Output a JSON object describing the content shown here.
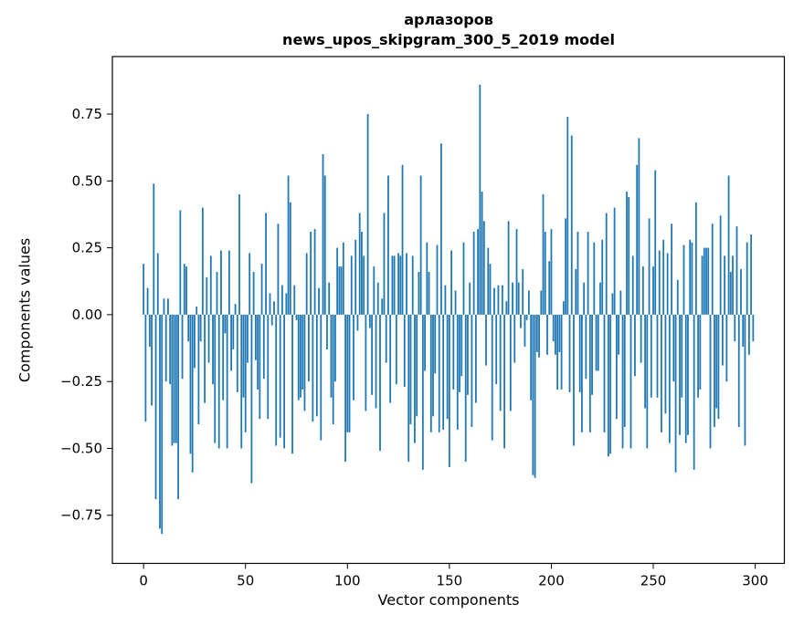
{
  "title": {
    "line1": "арлазоров",
    "line2": "news_upos_skipgram_300_5_2019 model"
  },
  "colors": {
    "bar": "#1f77b4",
    "axis": "#000000",
    "background": "#ffffff"
  },
  "chart_data": {
    "type": "bar",
    "title": "арлазоров — news_upos_skipgram_300_5_2019 model",
    "xlabel": "Vector components",
    "ylabel": "Components values",
    "legend": "none",
    "grid": false,
    "n_components": 300,
    "x_ticks": [
      0,
      50,
      100,
      150,
      200,
      250,
      300
    ],
    "y_ticks": [
      0.75,
      0.5,
      0.25,
      0.0,
      -0.25,
      -0.5,
      -0.75
    ],
    "y_tick_labels": [
      "0.75",
      "0.50",
      "0.25",
      "0.00",
      "−0.25",
      "−0.50",
      "−0.75"
    ],
    "xlim": [
      -15.3,
      314.3
    ],
    "ylim": [
      -0.93,
      0.965
    ],
    "values": [
      0.19,
      -0.4,
      0.1,
      -0.12,
      -0.34,
      0.49,
      -0.69,
      0.23,
      -0.8,
      -0.82,
      0.06,
      -0.25,
      0.06,
      -0.26,
      -0.49,
      -0.48,
      -0.48,
      -0.69,
      0.39,
      -0.24,
      0.19,
      0.18,
      -0.1,
      -0.52,
      -0.59,
      -0.2,
      0.03,
      -0.41,
      -0.1,
      0.4,
      -0.33,
      0.14,
      -0.18,
      0.22,
      -0.26,
      -0.48,
      0.16,
      -0.5,
      0.24,
      -0.32,
      -0.07,
      -0.5,
      0.24,
      -0.21,
      -0.13,
      0.04,
      -0.29,
      0.45,
      -0.5,
      -0.31,
      -0.44,
      -0.18,
      0.23,
      -0.63,
      0.16,
      -0.17,
      -0.28,
      -0.39,
      0.19,
      -0.24,
      0.38,
      -0.39,
      0.08,
      -0.04,
      0.05,
      -0.49,
      0.34,
      -0.46,
      0.11,
      -0.5,
      0.08,
      0.52,
      0.42,
      -0.52,
      0.11,
      -0.02,
      -0.32,
      -0.31,
      -0.28,
      -0.36,
      0.23,
      -0.25,
      0.31,
      -0.4,
      0.32,
      -0.38,
      0.1,
      -0.47,
      0.6,
      0.52,
      -0.13,
      0.12,
      -0.31,
      -0.41,
      -0.25,
      0.25,
      0.18,
      0.18,
      0.27,
      -0.55,
      -0.44,
      -0.44,
      0.22,
      -0.32,
      0.28,
      -0.06,
      0.38,
      0.31,
      0.22,
      -0.36,
      0.75,
      -0.05,
      -0.3,
      0.18,
      -0.35,
      0.12,
      -0.51,
      0.06,
      0.38,
      -0.18,
      0.52,
      -0.33,
      0.22,
      0.22,
      -0.26,
      0.23,
      0.22,
      0.56,
      -0.27,
      0.23,
      -0.55,
      -0.41,
      0.22,
      -0.48,
      -0.38,
      0.16,
      0.52,
      -0.58,
      -0.21,
      0.27,
      0.16,
      -0.44,
      -0.38,
      -0.22,
      0.26,
      -0.44,
      0.64,
      -0.43,
      0.11,
      -0.39,
      -0.57,
      0.24,
      -0.28,
      0.09,
      -0.43,
      -0.29,
      -0.23,
      0.27,
      -0.55,
      -0.3,
      0.12,
      -0.42,
      0.31,
      -0.33,
      0.32,
      0.86,
      0.46,
      0.35,
      -0.19,
      0.25,
      0.19,
      -0.47,
      0.1,
      -0.26,
      0.11,
      -0.36,
      0.11,
      -0.5,
      0.05,
      0.35,
      -0.36,
      0.12,
      -0.18,
      0.32,
      0.12,
      -0.05,
      0.17,
      -0.12,
      -0.02,
      0.09,
      -0.32,
      -0.6,
      -0.61,
      -0.14,
      -0.16,
      0.09,
      0.45,
      0.31,
      -0.15,
      0.2,
      0.32,
      -0.1,
      -0.15,
      -0.28,
      -0.14,
      -0.28,
      0.05,
      0.36,
      0.74,
      -0.29,
      0.67,
      -0.49,
      0.17,
      0.31,
      -0.29,
      -0.44,
      0.12,
      -0.24,
      0.31,
      -0.44,
      -0.3,
      0.27,
      -0.21,
      -0.21,
      0.12,
      0.28,
      -0.44,
      0.38,
      -0.53,
      -0.52,
      0.08,
      0.4,
      -0.39,
      -0.15,
      0.09,
      -0.5,
      -0.42,
      0.46,
      0.44,
      -0.5,
      0.22,
      -0.23,
      0.56,
      0.66,
      -0.18,
      0.18,
      -0.35,
      -0.5,
      0.36,
      -0.31,
      0.18,
      0.54,
      -0.31,
      0.24,
      -0.44,
      0.28,
      -0.37,
      0.23,
      -0.48,
      0.34,
      -0.25,
      -0.59,
      0.13,
      -0.45,
      -0.31,
      0.26,
      -0.48,
      -0.45,
      0.28,
      0.27,
      -0.58,
      0.42,
      -0.31,
      -0.28,
      0.22,
      0.25,
      0.25,
      0.25,
      -0.5,
      0.34,
      -0.42,
      -0.35,
      -0.39,
      0.37,
      -0.19,
      0.22,
      -0.25,
      0.52,
      0.16,
      0.22,
      -0.1,
      0.33,
      -0.42,
      0.17,
      -0.12,
      -0.49,
      0.27,
      -0.15,
      0.3,
      -0.1
    ]
  }
}
